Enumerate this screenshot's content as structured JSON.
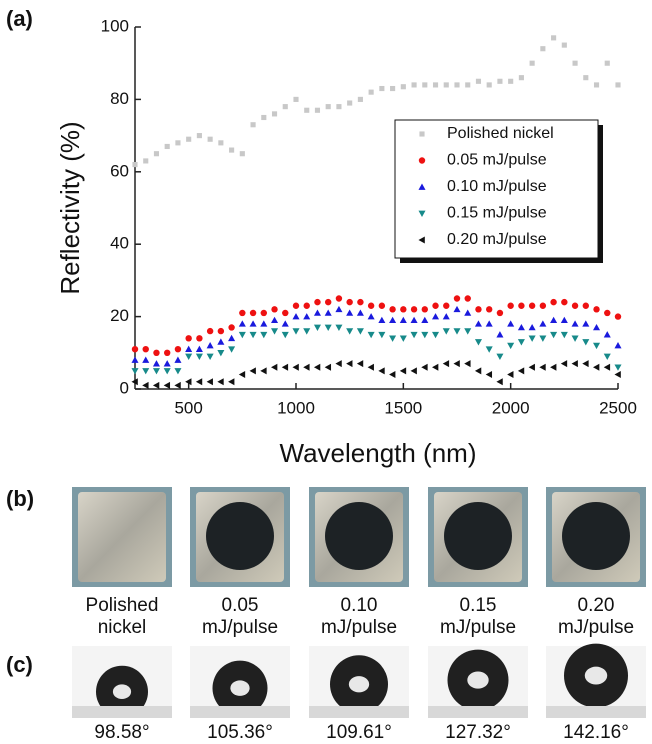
{
  "chart_data": {
    "type": "scatter",
    "panel_label": "(a)",
    "x_label": "Wavelength (nm)",
    "y_label": "Reflectivity (%)",
    "x": [
      250,
      300,
      350,
      400,
      450,
      500,
      550,
      600,
      650,
      700,
      750,
      800,
      850,
      900,
      950,
      1000,
      1050,
      1100,
      1150,
      1200,
      1250,
      1300,
      1350,
      1400,
      1450,
      1500,
      1550,
      1600,
      1650,
      1700,
      1750,
      1800,
      1850,
      1900,
      1950,
      2000,
      2050,
      2100,
      2150,
      2200,
      2250,
      2300,
      2350,
      2400,
      2450,
      2500
    ],
    "xlim": [
      250,
      2500
    ],
    "xticks": [
      500,
      1000,
      1500,
      2000,
      2500
    ],
    "ylim": [
      0,
      100
    ],
    "yticks": [
      0,
      20,
      40,
      60,
      80,
      100
    ],
    "legend": "upper right",
    "series": [
      {
        "name": "Polished nickel",
        "color": "#c8c8c8",
        "marker": "square",
        "values": [
          62,
          63,
          65,
          67,
          68,
          69,
          70,
          69,
          68,
          66,
          65,
          73,
          75,
          76,
          78,
          80,
          77,
          77,
          78,
          78,
          79,
          80,
          82,
          83,
          83,
          83.5,
          84,
          84,
          84,
          84,
          84,
          84,
          85,
          84,
          85,
          85,
          86,
          90,
          94,
          97,
          95,
          90,
          86,
          84,
          90,
          84
        ]
      },
      {
        "name": "0.05 mJ/pulse",
        "color": "#ee1111",
        "marker": "circle",
        "values": [
          11,
          11,
          10,
          10,
          11,
          14,
          14,
          16,
          16,
          17,
          21,
          21,
          21,
          22,
          21,
          23,
          23,
          24,
          24,
          25,
          24,
          24,
          23,
          23,
          22,
          22,
          22,
          22,
          23,
          23,
          25,
          25,
          22,
          22,
          21,
          23,
          23,
          23,
          23,
          24,
          24,
          23,
          23,
          22,
          21,
          20
        ]
      },
      {
        "name": "0.10 mJ/pulse",
        "color": "#1a1add",
        "marker": "triangle-up",
        "values": [
          8,
          8,
          7,
          7,
          8,
          11,
          11,
          12,
          13,
          14,
          18,
          18,
          18,
          19,
          18,
          20,
          20,
          21,
          21,
          22,
          21,
          21,
          20,
          19,
          19,
          19,
          19,
          19,
          20,
          20,
          22,
          21,
          18,
          18,
          15,
          18,
          17,
          17,
          18,
          19,
          19,
          18,
          18,
          17,
          15,
          12
        ]
      },
      {
        "name": "0.15 mJ/pulse",
        "color": "#178a8a",
        "marker": "triangle-down",
        "values": [
          5,
          5,
          5,
          5,
          5,
          9,
          9,
          9,
          10,
          11,
          15,
          15,
          15,
          16,
          15,
          16,
          16,
          17,
          17,
          17,
          16,
          16,
          15,
          15,
          14,
          14,
          15,
          15,
          15,
          16,
          16,
          16,
          13,
          11,
          9,
          12,
          13,
          14,
          14,
          15,
          15,
          14,
          13,
          12,
          9,
          6
        ]
      },
      {
        "name": "0.20 mJ/pulse",
        "color": "#111111",
        "marker": "triangle-left",
        "values": [
          2,
          1,
          1,
          1,
          1,
          2,
          2,
          2,
          2,
          2,
          4,
          5,
          5,
          6,
          6,
          6,
          6,
          6,
          6,
          7,
          7,
          7,
          6,
          5,
          4,
          5,
          5,
          6,
          6,
          7,
          7,
          7,
          5,
          4,
          2,
          4,
          5,
          6,
          6,
          6,
          7,
          7,
          7,
          6,
          6,
          4
        ]
      }
    ]
  },
  "panel_b": {
    "label": "(b)",
    "samples": [
      [
        "Polished",
        "nickel"
      ],
      [
        "0.05",
        "mJ/pulse"
      ],
      [
        "0.10",
        "mJ/pulse"
      ],
      [
        "0.15",
        "mJ/pulse"
      ],
      [
        "0.20",
        "mJ/pulse"
      ]
    ]
  },
  "panel_c": {
    "label": "(c)",
    "angles": [
      "98.58°",
      "105.36°",
      "109.61°",
      "127.32°",
      "142.16°"
    ]
  }
}
